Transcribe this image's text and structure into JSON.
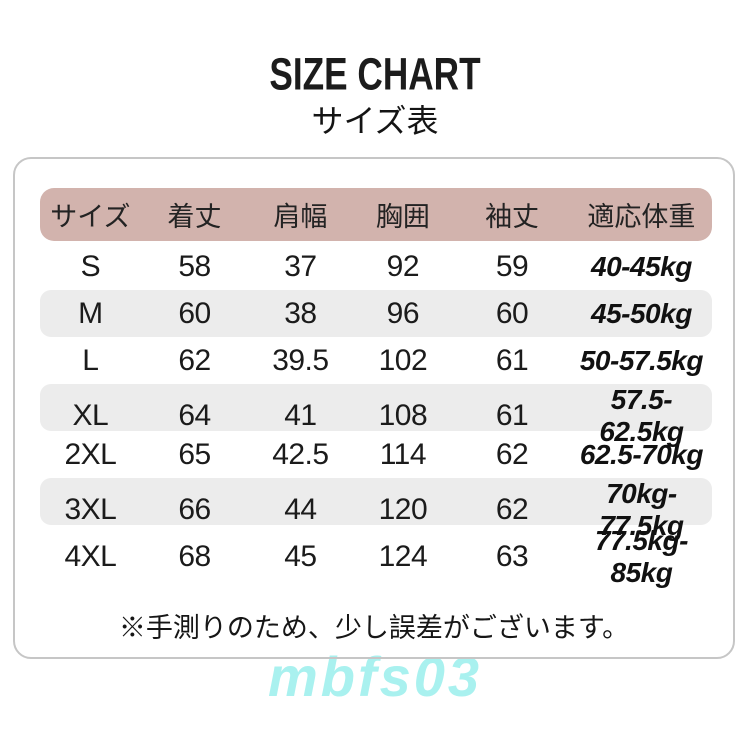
{
  "title": "SIZE CHART",
  "subtitle": "サイズ表",
  "chart_data": {
    "type": "table",
    "title": "SIZE CHART",
    "subtitle": "サイズ表",
    "columns": [
      "サイズ",
      "着丈",
      "肩幅",
      "胸囲",
      "袖丈",
      "適応体重"
    ],
    "rows": [
      [
        "S",
        "58",
        "37",
        "92",
        "59",
        "40-45kg"
      ],
      [
        "M",
        "60",
        "38",
        "96",
        "60",
        "45-50kg"
      ],
      [
        "L",
        "62",
        "39.5",
        "102",
        "61",
        "50-57.5kg"
      ],
      [
        "XL",
        "64",
        "41",
        "108",
        "61",
        "57.5-62.5kg"
      ],
      [
        "2XL",
        "65",
        "42.5",
        "114",
        "62",
        "62.5-70kg"
      ],
      [
        "3XL",
        "66",
        "44",
        "120",
        "62",
        "70kg-77.5kg"
      ],
      [
        "4XL",
        "68",
        "45",
        "124",
        "63",
        "77.5kg-85kg"
      ]
    ]
  },
  "note": "※手測りのため、少し誤差がございます。",
  "watermark": "mbfs03",
  "colors": {
    "header_bg": "#d2b3ad",
    "row_alt_bg": "#ececec",
    "card_border": "#c6c6c6",
    "text": "#1b1b1b",
    "watermark": "#a9f1ef"
  }
}
